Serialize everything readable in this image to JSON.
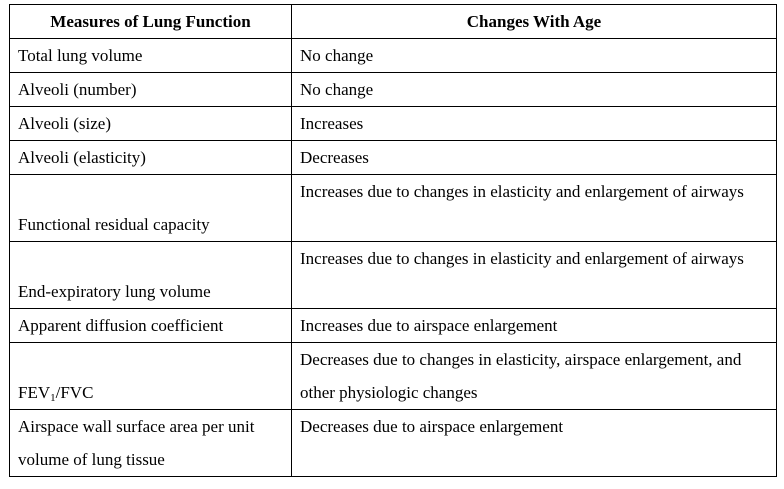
{
  "headers": {
    "measure": "Measures of Lung Function",
    "change": "Changes With Age"
  },
  "rows": [
    {
      "measure": "Total lung volume",
      "change": "No change"
    },
    {
      "measure": "Alveoli (number)",
      "change": "No change"
    },
    {
      "measure": "Alveoli (size)",
      "change": "Increases"
    },
    {
      "measure": "Alveoli (elasticity)",
      "change": "Decreases"
    },
    {
      "measure": "Functional residual capacity",
      "change": "Increases due to changes in elasticity and enlargement of airways"
    },
    {
      "measure": "End-expiratory lung volume",
      "change": "Increases due to changes in elasticity and enlargement of airways"
    },
    {
      "measure": "Apparent diffusion coefficient",
      "change": "Increases due to airspace enlargement"
    },
    {
      "measure": {
        "prefix": "FEV",
        "subscript": "1",
        "suffix": "/FVC"
      },
      "change": "Decreases due to changes in elasticity, airspace enlargement, and other physiologic changes"
    },
    {
      "measure": "Airspace wall surface area per unit volume of lung tissue",
      "change": "Decreases due to airspace enlargement"
    }
  ]
}
